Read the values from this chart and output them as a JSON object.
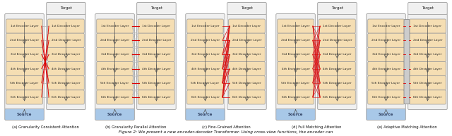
{
  "subfig_titles": [
    "(a) Granularity Consistent Attention",
    "(b) Granularity Parallel Attention",
    "(c) Fine-Grained Attention",
    "(d) Full Matching Attention",
    "(e) Adaptive Matching Attention"
  ],
  "fig_caption": "Figure 2: We present a new encoder-decoder Transformer. Using cross-view functions, the encoder can",
  "n_layers": 6,
  "layer_labels_enc": [
    "1st Encoder Layer",
    "2nd Encoder Layer",
    "3rd Encoder Layer",
    "4th Encoder Layer",
    "5th Encoder Layer",
    "6th Encoder Layer"
  ],
  "layer_labels_dec": [
    "1st Decoder Layer",
    "2nd Decoder Layer",
    "3rd Decoder Layer",
    "4th Decoder Layer",
    "5th Decoder Layer",
    "6th Decoder Layer"
  ],
  "source_label": "Source",
  "target_label": "Target",
  "box_facecolor_layer": "#f5deb3",
  "box_facecolor_src": "#a8c8e8",
  "box_edgecolor_layer": "#999999",
  "box_edgecolor_outer": "#aaaaaa",
  "outer_facecolor": "#f0f0f0",
  "bg_color": "#ffffff",
  "red_color": "#dd0000",
  "dashed_color": "#999999",
  "arrow_color": "#555555",
  "text_color": "#222222",
  "caption_color": "#111111"
}
